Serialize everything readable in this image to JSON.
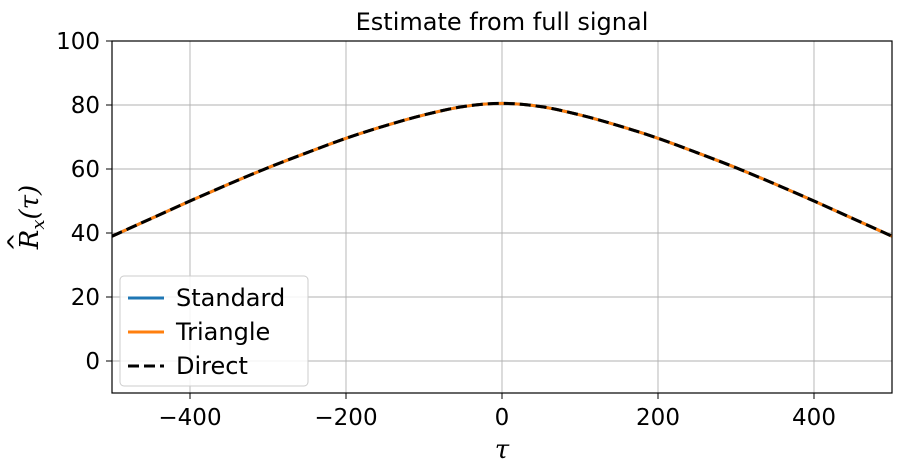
{
  "chart_data": {
    "type": "line",
    "title": "Estimate from full signal",
    "xlabel": "τ",
    "ylabel": "R̂x(τ)",
    "ylabel_parts": {
      "hat": "^",
      "base": "R",
      "sub": "x",
      "arg": "(τ)"
    },
    "xlim": [
      -500,
      500
    ],
    "ylim": [
      -10,
      100
    ],
    "xticks": [
      -400,
      -200,
      0,
      200,
      400
    ],
    "xtick_labels": [
      "−400",
      "−200",
      "0",
      "200",
      "400"
    ],
    "yticks": [
      0,
      20,
      40,
      60,
      80,
      100
    ],
    "ytick_labels": [
      "0",
      "20",
      "40",
      "60",
      "80",
      "100"
    ],
    "grid": true,
    "legend_position": "lower-left",
    "x": [
      -500,
      -450,
      -400,
      -350,
      -300,
      -250,
      -200,
      -150,
      -100,
      -50,
      0,
      50,
      100,
      150,
      200,
      250,
      300,
      350,
      400,
      450,
      500
    ],
    "series": [
      {
        "name": "Standard",
        "color": "#1f77b4",
        "style": "solid",
        "values": [
          39.0,
          44.5,
          50.0,
          55.3,
          60.4,
          65.1,
          69.6,
          73.5,
          76.9,
          79.5,
          80.5,
          79.5,
          76.9,
          73.5,
          69.6,
          65.1,
          60.4,
          55.3,
          50.0,
          44.5,
          39.0
        ]
      },
      {
        "name": "Triangle",
        "color": "#ff7f0e",
        "style": "solid",
        "values": [
          39.0,
          44.5,
          50.0,
          55.3,
          60.4,
          65.1,
          69.6,
          73.5,
          76.9,
          79.5,
          80.5,
          79.5,
          76.9,
          73.5,
          69.6,
          65.1,
          60.4,
          55.3,
          50.0,
          44.5,
          39.0
        ]
      },
      {
        "name": "Direct",
        "color": "#000000",
        "style": "dashed",
        "values": [
          39.0,
          44.5,
          50.0,
          55.3,
          60.4,
          65.1,
          69.6,
          73.5,
          76.9,
          79.5,
          80.5,
          79.5,
          76.9,
          73.5,
          69.6,
          65.1,
          60.4,
          55.3,
          50.0,
          44.5,
          39.0
        ]
      }
    ]
  }
}
